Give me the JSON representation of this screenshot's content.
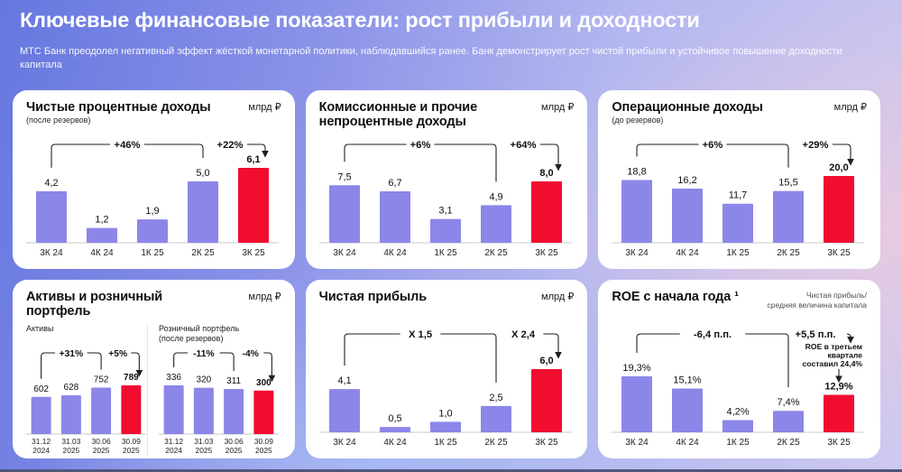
{
  "header": {
    "title": "Ключевые финансовые показатели: рост прибыли и доходности",
    "subtitle": "МТС Банк преодолел негативный эффект жёсткой монетарной политики, наблюдавшийся ранее. Банк демонстрирует рост чистой прибыли и устойчивое повышение доходности капитала"
  },
  "colors": {
    "bar": "#8c86e8",
    "bar_highlight": "#f00d30",
    "annotation_line": "#1f1f1f",
    "axis_line": "#dcdcdc",
    "label_text": "#101010"
  },
  "chart_data": [
    {
      "type": "bar",
      "title": "Чистые процентные доходы",
      "subtitle": "(после резервов)",
      "unit": "млрд ₽",
      "categories": [
        "3К 24",
        "4К 24",
        "1К 25",
        "2К 25",
        "3К 25"
      ],
      "values": [
        4.2,
        1.2,
        1.9,
        5.0,
        6.1
      ],
      "value_labels": [
        "4,2",
        "1,2",
        "1,9",
        "5,0",
        "6,1"
      ],
      "highlight_index": 4,
      "annotations": [
        {
          "type": "bracket",
          "from": 0,
          "to": 3,
          "label": "+46%"
        },
        {
          "type": "arrow",
          "to": 4,
          "label": "+22%"
        }
      ]
    },
    {
      "type": "bar",
      "title": "Комиссионные и прочие непроцентные доходы",
      "subtitle": "",
      "unit": "млрд ₽",
      "categories": [
        "3К 24",
        "4К 24",
        "1К 25",
        "2К 25",
        "3К 25"
      ],
      "values": [
        7.5,
        6.7,
        3.1,
        4.9,
        8.0
      ],
      "value_labels": [
        "7,5",
        "6,7",
        "3,1",
        "4,9",
        "8,0"
      ],
      "highlight_index": 4,
      "annotations": [
        {
          "type": "bracket",
          "from": 0,
          "to": 3,
          "label": "+6%"
        },
        {
          "type": "arrow",
          "to": 4,
          "label": "+64%"
        }
      ]
    },
    {
      "type": "bar",
      "title": "Операционные доходы",
      "subtitle": "(до резервов)",
      "unit": "млрд ₽",
      "categories": [
        "3К 24",
        "4К 24",
        "1К 25",
        "2К 25",
        "3К 25"
      ],
      "values": [
        18.8,
        16.2,
        11.7,
        15.5,
        20.0
      ],
      "value_labels": [
        "18,8",
        "16,2",
        "11,7",
        "15,5",
        "20,0"
      ],
      "highlight_index": 4,
      "annotations": [
        {
          "type": "bracket",
          "from": 0,
          "to": 3,
          "label": "+6%"
        },
        {
          "type": "arrow",
          "to": 4,
          "label": "+29%"
        }
      ]
    },
    {
      "type": "bar",
      "title": "Активы и розничный портфель",
      "unit": "млрд ₽",
      "sub_charts": [
        {
          "label": "Активы",
          "categories": [
            [
              "31.12",
              "2024"
            ],
            [
              "31.03",
              "2025"
            ],
            [
              "30.06",
              "2025"
            ],
            [
              "30.09",
              "2025"
            ]
          ],
          "values": [
            602,
            628,
            752,
            789
          ],
          "value_labels": [
            "602",
            "628",
            "752",
            "789"
          ],
          "highlight_index": 3,
          "annotations": [
            {
              "type": "bracket",
              "from": 0,
              "to": 2,
              "label": "+31%"
            },
            {
              "type": "arrow",
              "to": 3,
              "label": "+5%"
            }
          ]
        },
        {
          "label": "Розничный портфель\n(после резервов)",
          "categories": [
            [
              "31.12",
              "2024"
            ],
            [
              "31.03",
              "2025"
            ],
            [
              "30.06",
              "2025"
            ],
            [
              "30.09",
              "2025"
            ]
          ],
          "values": [
            336,
            320,
            311,
            300
          ],
          "value_labels": [
            "336",
            "320",
            "311",
            "300"
          ],
          "highlight_index": 3,
          "annotations": [
            {
              "type": "bracket",
              "from": 0,
              "to": 2,
              "label": "-11%"
            },
            {
              "type": "arrow",
              "to": 3,
              "label": "-4%"
            }
          ]
        }
      ]
    },
    {
      "type": "bar",
      "title": "Чистая прибыль",
      "subtitle": "",
      "unit": "млрд ₽",
      "categories": [
        "3К 24",
        "4К 24",
        "1К 25",
        "2К 25",
        "3К 25"
      ],
      "values": [
        4.1,
        0.5,
        1.0,
        2.5,
        6.0
      ],
      "value_labels": [
        "4,1",
        "0,5",
        "1,0",
        "2,5",
        "6,0"
      ],
      "highlight_index": 4,
      "annotations": [
        {
          "type": "bracket",
          "from": 0,
          "to": 3,
          "label": "Х 1,5"
        },
        {
          "type": "arrow",
          "to": 4,
          "label": "Х 2,4"
        }
      ]
    },
    {
      "type": "bar",
      "title": "ROE с начала года ¹",
      "subtitle": "",
      "unit": "Чистая прибыль/\nсредняя величина капитала",
      "categories": [
        "3К 24",
        "4К 24",
        "1К 25",
        "2К 25",
        "3К 25"
      ],
      "values": [
        19.3,
        15.1,
        4.2,
        7.4,
        12.9
      ],
      "value_labels": [
        "19,3%",
        "15,1%",
        "4,2%",
        "7,4%",
        "12,9%"
      ],
      "highlight_index": 4,
      "annotations": [
        {
          "type": "bracket",
          "from": 0,
          "to": 3,
          "label": "-6,4 п.п."
        },
        {
          "type": "arrow_note",
          "to": 4,
          "label": "+5,5 п.п.",
          "note_lines": [
            "ROE в третьем",
            "квартале",
            "составил 24,4%"
          ]
        }
      ]
    }
  ]
}
